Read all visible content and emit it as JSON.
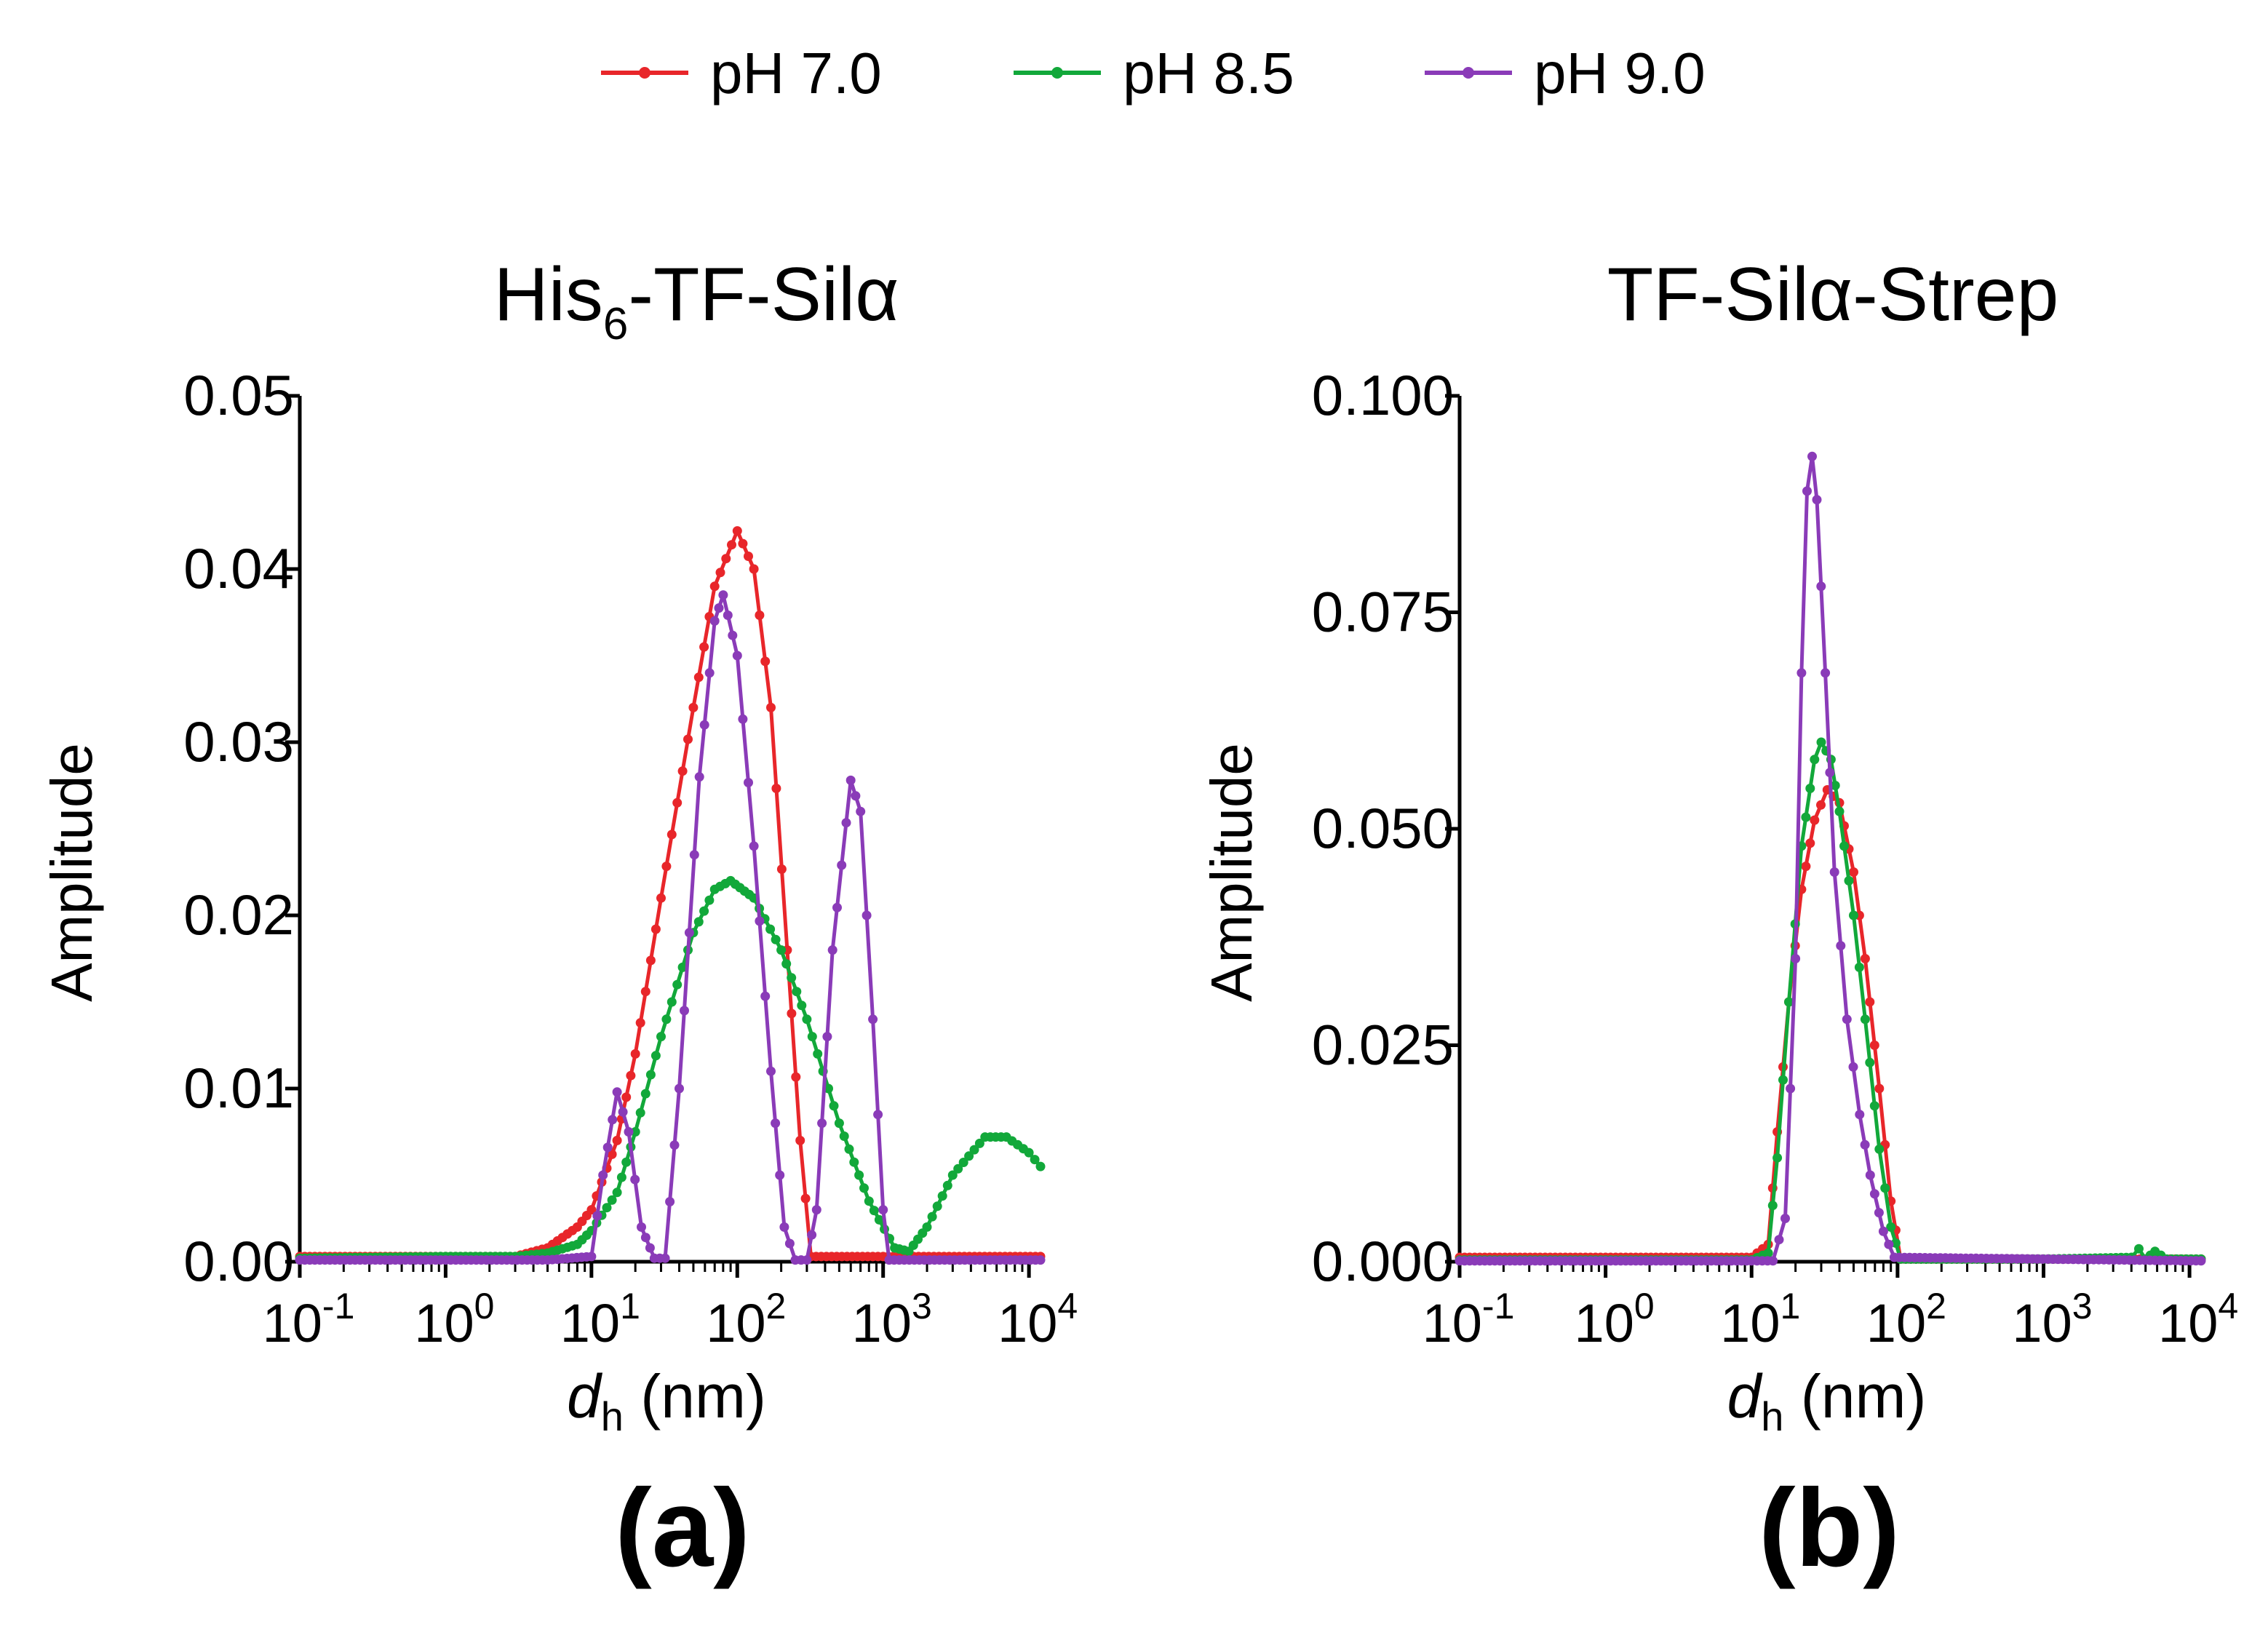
{
  "legend": [
    {
      "label": "pH 7.0",
      "color": "#e8262a"
    },
    {
      "label": "pH 8.5",
      "color": "#12a83a"
    },
    {
      "label": "pH 9.0",
      "color": "#8a3bb8"
    }
  ],
  "chart_data": [
    {
      "type": "line",
      "panel_label": "(a)",
      "title_main": "His",
      "title_sub": "6",
      "title_rest": "-TF-Silα",
      "xlabel_italic": "d",
      "xlabel_sub": "h",
      "xlabel_rest": " (nm)",
      "ylabel": "Amplitude",
      "xscale": "log",
      "xlim": [
        0.1,
        12000
      ],
      "ylim": [
        0,
        0.05
      ],
      "yticks": [
        0,
        0.01,
        0.02,
        0.03,
        0.04,
        0.05
      ],
      "ytick_labels": [
        "0.00",
        "0.01",
        "0.02",
        "0.03",
        "0.04",
        "0.05"
      ],
      "xtick_labels": [
        {
          "base": "10",
          "exp": "-1"
        },
        {
          "base": "10",
          "exp": "0"
        },
        {
          "base": "10",
          "exp": "1"
        },
        {
          "base": "10",
          "exp": "2"
        },
        {
          "base": "10",
          "exp": "3"
        },
        {
          "base": "10",
          "exp": "4"
        }
      ],
      "series": [
        {
          "name": "pH 7.0",
          "color": "#e8262a",
          "points": [
            [
              0.1,
              0.0003
            ],
            [
              1,
              0.0003
            ],
            [
              3,
              0.0003
            ],
            [
              5,
              0.0008
            ],
            [
              8,
              0.002
            ],
            [
              10,
              0.003
            ],
            [
              15,
              0.007
            ],
            [
              20,
              0.012
            ],
            [
              30,
              0.021
            ],
            [
              50,
              0.032
            ],
            [
              70,
              0.039
            ],
            [
              100,
              0.0422
            ],
            [
              130,
              0.04
            ],
            [
              170,
              0.032
            ],
            [
              220,
              0.018
            ],
            [
              270,
              0.007
            ],
            [
              320,
              0.0003
            ],
            [
              1000,
              0.0003
            ],
            [
              12000,
              0.0003
            ]
          ]
        },
        {
          "name": "pH 8.5",
          "color": "#12a83a",
          "points": [
            [
              0.1,
              0.0002
            ],
            [
              1,
              0.0003
            ],
            [
              3,
              0.0003
            ],
            [
              5,
              0.0005
            ],
            [
              8,
              0.001
            ],
            [
              10,
              0.0018
            ],
            [
              15,
              0.004
            ],
            [
              20,
              0.0075
            ],
            [
              30,
              0.013
            ],
            [
              50,
              0.019
            ],
            [
              70,
              0.0215
            ],
            [
              90,
              0.022
            ],
            [
              130,
              0.021
            ],
            [
              200,
              0.018
            ],
            [
              300,
              0.014
            ],
            [
              500,
              0.008
            ],
            [
              800,
              0.0035
            ],
            [
              1200,
              0.0008
            ],
            [
              1500,
              0.0006
            ],
            [
              2000,
              0.002
            ],
            [
              3000,
              0.005
            ],
            [
              5000,
              0.0072
            ],
            [
              7000,
              0.0072
            ],
            [
              10000,
              0.0063
            ],
            [
              12000,
              0.0055
            ]
          ]
        },
        {
          "name": "pH 9.0",
          "color": "#8a3bb8",
          "points": [
            [
              0.1,
              0.0001
            ],
            [
              1,
              0.0001
            ],
            [
              5,
              0.0001
            ],
            [
              10,
              0.0003
            ],
            [
              12,
              0.005
            ],
            [
              15,
              0.0098
            ],
            [
              18,
              0.0075
            ],
            [
              22,
              0.002
            ],
            [
              27,
              0.0002
            ],
            [
              32,
              0.0002
            ],
            [
              40,
              0.01
            ],
            [
              55,
              0.028
            ],
            [
              70,
              0.037
            ],
            [
              80,
              0.0385
            ],
            [
              100,
              0.035
            ],
            [
              130,
              0.024
            ],
            [
              170,
              0.011
            ],
            [
              210,
              0.002
            ],
            [
              250,
              0.0001
            ],
            [
              300,
              0.0001
            ],
            [
              350,
              0.003
            ],
            [
              450,
              0.018
            ],
            [
              600,
              0.0278
            ],
            [
              700,
              0.026
            ],
            [
              850,
              0.014
            ],
            [
              1000,
              0.003
            ],
            [
              1100,
              0.0001
            ],
            [
              12000,
              0.0001
            ]
          ]
        }
      ]
    },
    {
      "type": "line",
      "panel_label": "(b)",
      "title_main": "TF-Silα-Strep",
      "title_sub": "",
      "title_rest": "",
      "xlabel_italic": "d",
      "xlabel_sub": "h",
      "xlabel_rest": " (nm)",
      "ylabel": "Amplitude",
      "xscale": "log",
      "xlim": [
        0.1,
        12000
      ],
      "ylim": [
        0,
        0.1
      ],
      "yticks": [
        0,
        0.025,
        0.05,
        0.075,
        0.1
      ],
      "ytick_labels": [
        "0.000",
        "0.025",
        "0.050",
        "0.075",
        "0.100"
      ],
      "xtick_labels": [
        {
          "base": "10",
          "exp": "-1"
        },
        {
          "base": "10",
          "exp": "0"
        },
        {
          "base": "10",
          "exp": "1"
        },
        {
          "base": "10",
          "exp": "2"
        },
        {
          "base": "10",
          "exp": "3"
        },
        {
          "base": "10",
          "exp": "4"
        }
      ],
      "series": [
        {
          "name": "pH 7.0",
          "color": "#e8262a",
          "points": [
            [
              0.1,
              0.0005
            ],
            [
              1,
              0.0005
            ],
            [
              10,
              0.0005
            ],
            [
              13,
              0.002
            ],
            [
              15,
              0.015
            ],
            [
              18,
              0.03
            ],
            [
              22,
              0.043
            ],
            [
              27,
              0.051
            ],
            [
              33,
              0.0545
            ],
            [
              40,
              0.053
            ],
            [
              50,
              0.045
            ],
            [
              60,
              0.035
            ],
            [
              75,
              0.02
            ],
            [
              90,
              0.007
            ],
            [
              105,
              0.0003
            ],
            [
              12000,
              0.0003
            ]
          ]
        },
        {
          "name": "pH 8.5",
          "color": "#12a83a",
          "points": [
            [
              0.1,
              0.0002
            ],
            [
              1,
              0.0002
            ],
            [
              10,
              0.0002
            ],
            [
              13,
              0.001
            ],
            [
              15,
              0.012
            ],
            [
              18,
              0.03
            ],
            [
              22,
              0.048
            ],
            [
              27,
              0.058
            ],
            [
              30,
              0.06
            ],
            [
              35,
              0.058
            ],
            [
              40,
              0.052
            ],
            [
              50,
              0.04
            ],
            [
              60,
              0.028
            ],
            [
              75,
              0.013
            ],
            [
              90,
              0.004
            ],
            [
              105,
              0.0003
            ],
            [
              1000,
              0.0003
            ],
            [
              4000,
              0.0005
            ],
            [
              4500,
              0.0015
            ],
            [
              5000,
              0.0003
            ],
            [
              5800,
              0.0012
            ],
            [
              7000,
              0.0003
            ],
            [
              12000,
              0.0003
            ]
          ]
        },
        {
          "name": "pH 9.0",
          "color": "#8a3bb8",
          "points": [
            [
              0.1,
              0.0001
            ],
            [
              1,
              0.0001
            ],
            [
              10,
              0.0001
            ],
            [
              14,
              0.0001
            ],
            [
              17,
              0.005
            ],
            [
              20,
              0.035
            ],
            [
              22,
              0.068
            ],
            [
              24,
              0.089
            ],
            [
              26,
              0.093
            ],
            [
              28,
              0.088
            ],
            [
              32,
              0.068
            ],
            [
              37,
              0.045
            ],
            [
              45,
              0.028
            ],
            [
              55,
              0.017
            ],
            [
              65,
              0.01
            ],
            [
              80,
              0.0035
            ],
            [
              95,
              0.0005
            ],
            [
              12000,
              0.0001
            ]
          ]
        }
      ]
    }
  ]
}
